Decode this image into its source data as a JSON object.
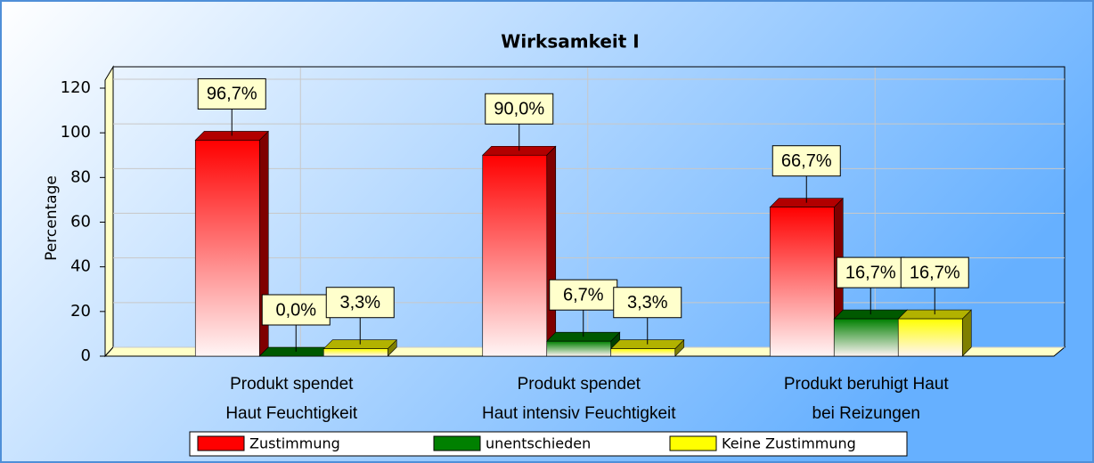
{
  "chart_data": {
    "type": "bar",
    "title": "Wirksamkeit I",
    "y_label": "Percentage",
    "categories": [
      [
        "Produkt spendet",
        "Haut Feuchtigkeit"
      ],
      [
        "Produkt spendet",
        "Haut intensiv Feuchtigkeit"
      ],
      [
        "Produkt beruhigt Haut",
        "bei Reizungen"
      ]
    ],
    "series": [
      {
        "name": "Zustimmung",
        "color": "#ff0000",
        "values": [
          96.7,
          90.0,
          66.7
        ],
        "value_labels": [
          "96,7%",
          "90,0%",
          "66,7%"
        ]
      },
      {
        "name": "unentschieden",
        "color": "#008000",
        "values": [
          0.0,
          6.7,
          16.7
        ],
        "value_labels": [
          "0,0%",
          "6,7%",
          "16,7%"
        ]
      },
      {
        "name": "Keine Zustimmung",
        "color": "#ffff00",
        "values": [
          3.3,
          3.3,
          16.7
        ],
        "value_labels": [
          "3,3%",
          "3,3%",
          "16,7%"
        ]
      }
    ],
    "ylim": [
      0,
      120
    ],
    "yticks": [
      0,
      20,
      40,
      60,
      80,
      100,
      120
    ],
    "grid": true
  }
}
